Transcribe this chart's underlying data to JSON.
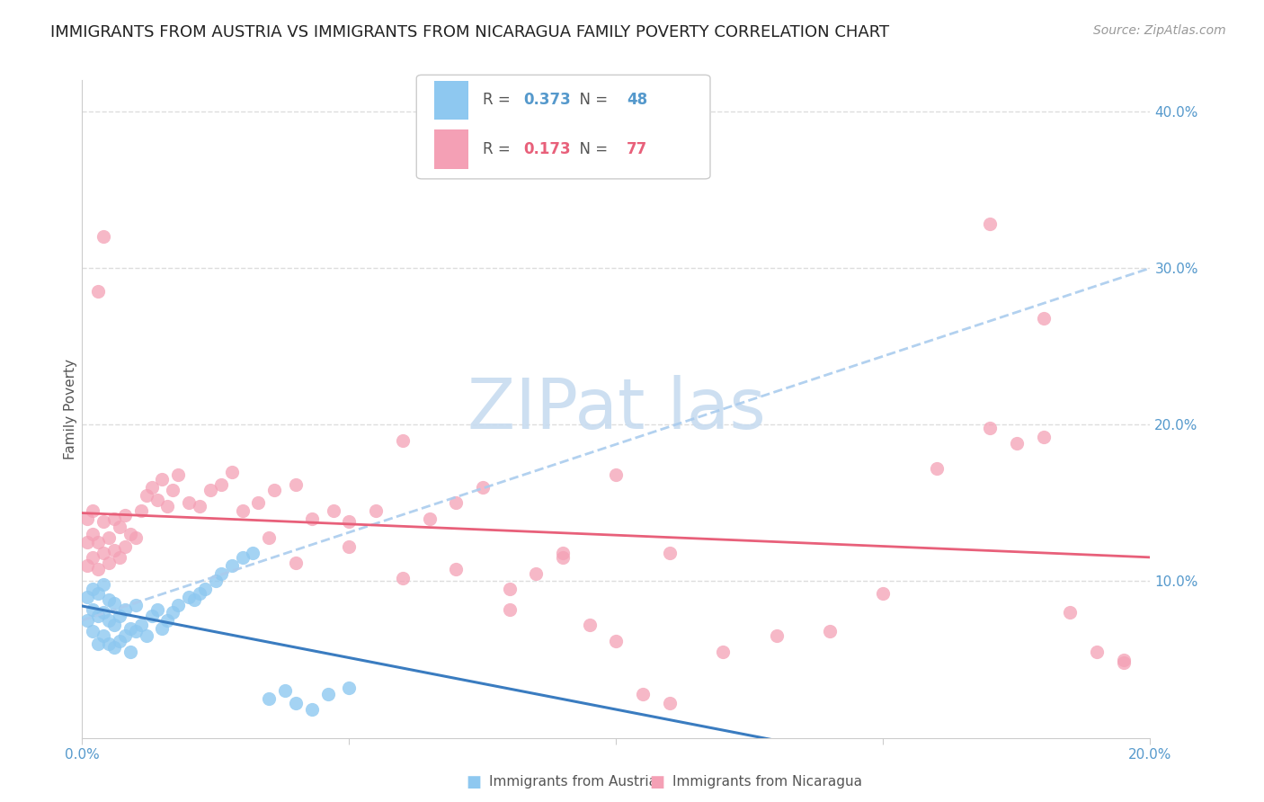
{
  "title": "IMMIGRANTS FROM AUSTRIA VS IMMIGRANTS FROM NICARAGUA FAMILY POVERTY CORRELATION CHART",
  "source": "Source: ZipAtlas.com",
  "ylabel": "Family Poverty",
  "legend_austria": "Immigrants from Austria",
  "legend_nicaragua": "Immigrants from Nicaragua",
  "R_austria": 0.373,
  "N_austria": 48,
  "R_nicaragua": 0.173,
  "N_nicaragua": 77,
  "xlim": [
    0,
    0.2
  ],
  "ylim": [
    0,
    0.42
  ],
  "xticks_show": [
    0.0,
    0.05,
    0.1,
    0.15,
    0.2
  ],
  "xticks_label": [
    0.0,
    0.2
  ],
  "yticks_right": [
    0.1,
    0.2,
    0.3,
    0.4
  ],
  "color_austria": "#8EC8F0",
  "color_nicaragua": "#F4A0B5",
  "color_trend_austria_solid": "#3A7CC0",
  "color_trend_nicaragua_solid": "#E8607A",
  "color_trend_dashed": "#AACCEE",
  "watermark_color": "#C8DCF0",
  "austria_x": [
    0.001,
    0.001,
    0.002,
    0.002,
    0.002,
    0.003,
    0.003,
    0.003,
    0.004,
    0.004,
    0.004,
    0.005,
    0.005,
    0.005,
    0.006,
    0.006,
    0.006,
    0.007,
    0.007,
    0.008,
    0.008,
    0.009,
    0.009,
    0.01,
    0.01,
    0.011,
    0.012,
    0.013,
    0.014,
    0.015,
    0.016,
    0.017,
    0.018,
    0.02,
    0.021,
    0.022,
    0.023,
    0.025,
    0.026,
    0.028,
    0.03,
    0.032,
    0.035,
    0.038,
    0.04,
    0.043,
    0.046,
    0.05
  ],
  "austria_y": [
    0.075,
    0.09,
    0.068,
    0.082,
    0.095,
    0.06,
    0.078,
    0.092,
    0.065,
    0.08,
    0.098,
    0.06,
    0.075,
    0.088,
    0.058,
    0.072,
    0.086,
    0.062,
    0.078,
    0.065,
    0.082,
    0.055,
    0.07,
    0.068,
    0.085,
    0.072,
    0.065,
    0.078,
    0.082,
    0.07,
    0.075,
    0.08,
    0.085,
    0.09,
    0.088,
    0.092,
    0.095,
    0.1,
    0.105,
    0.11,
    0.115,
    0.118,
    0.025,
    0.03,
    0.022,
    0.018,
    0.028,
    0.032
  ],
  "nicaragua_x": [
    0.001,
    0.001,
    0.001,
    0.002,
    0.002,
    0.002,
    0.003,
    0.003,
    0.004,
    0.004,
    0.005,
    0.005,
    0.006,
    0.006,
    0.007,
    0.007,
    0.008,
    0.008,
    0.009,
    0.01,
    0.011,
    0.012,
    0.013,
    0.014,
    0.015,
    0.016,
    0.017,
    0.018,
    0.02,
    0.022,
    0.024,
    0.026,
    0.028,
    0.03,
    0.033,
    0.036,
    0.04,
    0.043,
    0.047,
    0.05,
    0.055,
    0.06,
    0.065,
    0.07,
    0.075,
    0.08,
    0.085,
    0.09,
    0.095,
    0.1,
    0.105,
    0.11,
    0.12,
    0.13,
    0.14,
    0.15,
    0.16,
    0.17,
    0.175,
    0.18,
    0.185,
    0.19,
    0.195,
    0.003,
    0.004,
    0.035,
    0.04,
    0.05,
    0.06,
    0.07,
    0.08,
    0.09,
    0.1,
    0.11,
    0.17,
    0.18,
    0.195
  ],
  "nicaragua_y": [
    0.11,
    0.125,
    0.14,
    0.115,
    0.13,
    0.145,
    0.108,
    0.125,
    0.118,
    0.138,
    0.112,
    0.128,
    0.12,
    0.14,
    0.115,
    0.135,
    0.122,
    0.142,
    0.13,
    0.128,
    0.145,
    0.155,
    0.16,
    0.152,
    0.165,
    0.148,
    0.158,
    0.168,
    0.15,
    0.148,
    0.158,
    0.162,
    0.17,
    0.145,
    0.15,
    0.158,
    0.162,
    0.14,
    0.145,
    0.138,
    0.145,
    0.19,
    0.14,
    0.15,
    0.16,
    0.095,
    0.105,
    0.115,
    0.072,
    0.062,
    0.028,
    0.022,
    0.055,
    0.065,
    0.068,
    0.092,
    0.172,
    0.198,
    0.188,
    0.192,
    0.08,
    0.055,
    0.05,
    0.285,
    0.32,
    0.128,
    0.112,
    0.122,
    0.102,
    0.108,
    0.082,
    0.118,
    0.168,
    0.118,
    0.328,
    0.268,
    0.048
  ],
  "background_color": "#FFFFFF",
  "grid_color": "#DDDDDD",
  "axis_color": "#CCCCCC",
  "label_color": "#5599CC",
  "title_fontsize": 13,
  "ylabel_fontsize": 11,
  "tick_fontsize": 11,
  "legend_fontsize": 12,
  "scatter_size": 120
}
